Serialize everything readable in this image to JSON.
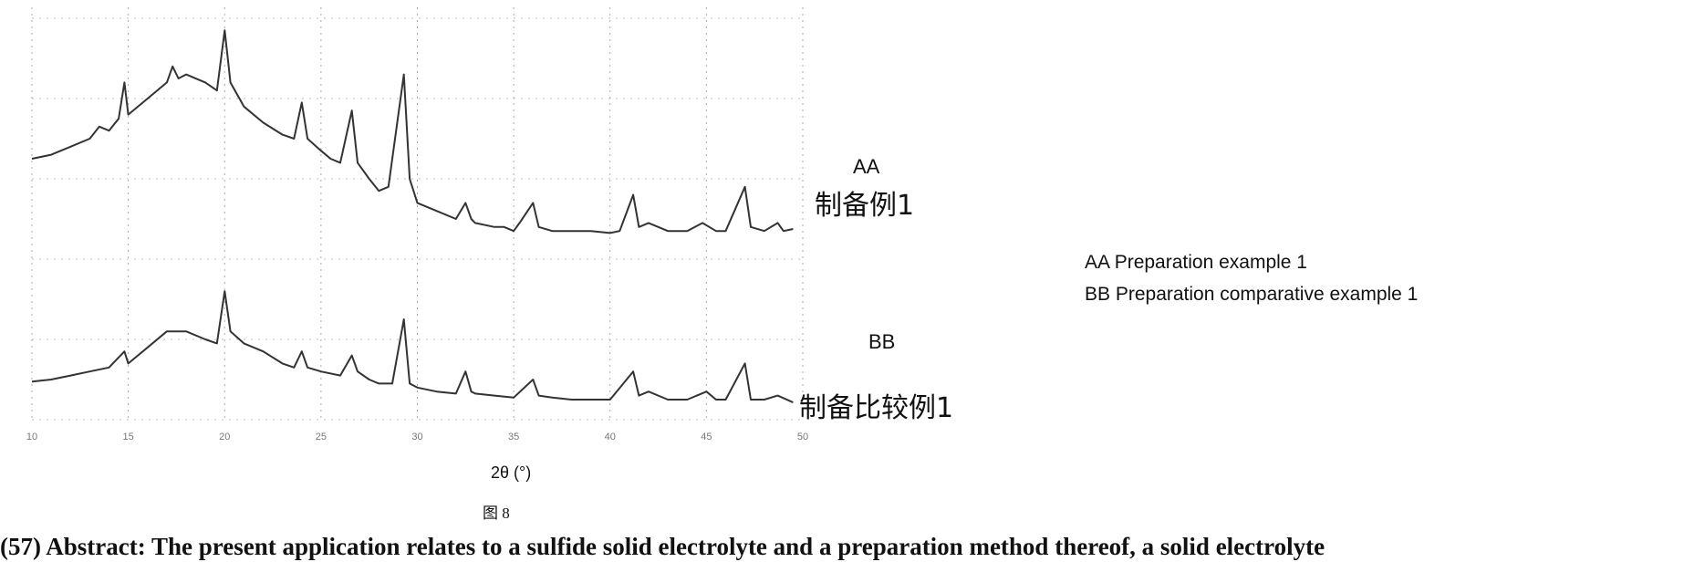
{
  "chart_data": {
    "type": "line",
    "title": "",
    "xlabel": "2θ (°)",
    "ylabel": "",
    "xlim": [
      10,
      50
    ],
    "ylim": [
      0,
      100
    ],
    "x_ticks": [
      "10",
      "15",
      "20",
      "25",
      "30",
      "35",
      "40",
      "45",
      "50"
    ],
    "grid": true,
    "line_color": "#333333",
    "series": [
      {
        "name": "AA",
        "label_cn": "制备例1",
        "points": [
          [
            10,
            65
          ],
          [
            11,
            66
          ],
          [
            12,
            68
          ],
          [
            13,
            70
          ],
          [
            13.5,
            73
          ],
          [
            14,
            72
          ],
          [
            14.5,
            75
          ],
          [
            14.8,
            84
          ],
          [
            15,
            76
          ],
          [
            16,
            80
          ],
          [
            17,
            84
          ],
          [
            17.3,
            88
          ],
          [
            17.6,
            85
          ],
          [
            18,
            86
          ],
          [
            19,
            84
          ],
          [
            19.6,
            82
          ],
          [
            20,
            97
          ],
          [
            20.3,
            84
          ],
          [
            21,
            78
          ],
          [
            22,
            74
          ],
          [
            23,
            71
          ],
          [
            23.6,
            70
          ],
          [
            24,
            79
          ],
          [
            24.3,
            70
          ],
          [
            25,
            67
          ],
          [
            25.5,
            65
          ],
          [
            26,
            64
          ],
          [
            26.6,
            77
          ],
          [
            26.9,
            64
          ],
          [
            27.5,
            60
          ],
          [
            28,
            57
          ],
          [
            28.5,
            58
          ],
          [
            29.3,
            86
          ],
          [
            29.6,
            60
          ],
          [
            30,
            54
          ],
          [
            31,
            52
          ],
          [
            32,
            50
          ],
          [
            32.5,
            54
          ],
          [
            32.8,
            50
          ],
          [
            33,
            49
          ],
          [
            34,
            48
          ],
          [
            34.5,
            48
          ],
          [
            35,
            47
          ],
          [
            35.3,
            49
          ],
          [
            36,
            54
          ],
          [
            36.3,
            48
          ],
          [
            37,
            47
          ],
          [
            38,
            47
          ],
          [
            39,
            47
          ],
          [
            40,
            46.5
          ],
          [
            40.5,
            47
          ],
          [
            41.2,
            56
          ],
          [
            41.5,
            48
          ],
          [
            42,
            49
          ],
          [
            43,
            47
          ],
          [
            44,
            47
          ],
          [
            44.8,
            49
          ],
          [
            45.5,
            47
          ],
          [
            46,
            47
          ],
          [
            47,
            58
          ],
          [
            47.3,
            48
          ],
          [
            48,
            47
          ],
          [
            48.7,
            49
          ],
          [
            49,
            47
          ],
          [
            49.5,
            47.5
          ]
        ]
      },
      {
        "name": "BB",
        "label_cn": "制备比较例1",
        "points": [
          [
            10,
            9.5
          ],
          [
            11,
            10
          ],
          [
            12,
            11
          ],
          [
            13,
            12
          ],
          [
            14,
            13
          ],
          [
            14.8,
            17
          ],
          [
            15,
            14
          ],
          [
            16,
            18
          ],
          [
            17,
            22
          ],
          [
            18,
            22
          ],
          [
            19,
            20
          ],
          [
            19.6,
            19
          ],
          [
            20,
            32
          ],
          [
            20.3,
            22
          ],
          [
            21,
            19
          ],
          [
            22,
            17
          ],
          [
            23,
            14
          ],
          [
            23.6,
            13
          ],
          [
            24,
            17
          ],
          [
            24.3,
            13
          ],
          [
            25,
            12
          ],
          [
            26,
            11
          ],
          [
            26.6,
            16
          ],
          [
            26.9,
            12
          ],
          [
            27.5,
            10
          ],
          [
            28,
            9
          ],
          [
            28.7,
            9
          ],
          [
            29.3,
            25
          ],
          [
            29.6,
            9
          ],
          [
            30,
            8
          ],
          [
            31,
            7
          ],
          [
            32,
            6.5
          ],
          [
            32.5,
            12
          ],
          [
            32.8,
            7
          ],
          [
            33,
            6.5
          ],
          [
            34,
            6
          ],
          [
            35,
            5.5
          ],
          [
            36,
            10
          ],
          [
            36.3,
            6
          ],
          [
            37,
            5.5
          ],
          [
            38,
            5
          ],
          [
            39,
            5
          ],
          [
            40,
            5
          ],
          [
            41.2,
            12
          ],
          [
            41.5,
            6
          ],
          [
            42,
            7
          ],
          [
            43,
            5
          ],
          [
            44,
            5
          ],
          [
            45,
            7
          ],
          [
            45.5,
            5
          ],
          [
            46,
            5
          ],
          [
            47,
            14
          ],
          [
            47.3,
            5
          ],
          [
            48,
            5
          ],
          [
            48.7,
            6
          ],
          [
            49.5,
            4.3
          ]
        ]
      }
    ]
  },
  "legend": [
    "AA Preparation example 1",
    "BB Preparation comparative example 1"
  ],
  "figure_label": "图 8",
  "abstract_line": "(57) Abstract: The present application relates to a sulfide solid electrolyte and a preparation method thereof, a solid electrolyte"
}
